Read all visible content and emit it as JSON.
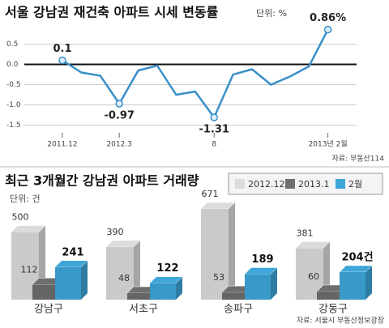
{
  "chart_data": [
    {
      "type": "line",
      "title": "서울 강남권 재건축 아파트 시세 변동률",
      "unit": "단위: %",
      "categories": [
        "2011.12",
        null,
        null,
        "2012.3",
        null,
        null,
        null,
        null,
        "8",
        null,
        null,
        null,
        null,
        null,
        "2013년 2월"
      ],
      "series": [
        {
          "name": "시세 변동률",
          "color": "#3a8fc8",
          "values": [
            0.1,
            -0.2,
            -0.28,
            -0.97,
            -0.15,
            -0.03,
            -0.75,
            -0.67,
            -1.31,
            -0.25,
            -0.12,
            -0.5,
            -0.3,
            -0.05,
            0.86
          ],
          "value_labels": [
            "0.1",
            null,
            null,
            "-0.97",
            null,
            null,
            null,
            null,
            "-1.31",
            null,
            null,
            null,
            null,
            null,
            "0.86%"
          ]
        }
      ],
      "ylim": [
        -1.65,
        0.95
      ],
      "yticks": [
        0.5,
        {
          "value": 0,
          "label": "0.0"
        },
        -0.5,
        {
          "value": -1,
          "label": "-1.0"
        },
        -1.5
      ],
      "grid": true,
      "source": "자료: 부동산114"
    },
    {
      "type": "bar3d",
      "title": "최근 3개월간 강남권 아파트 거래량",
      "unit": "단위: 건",
      "categories": [
        "강남구",
        "서초구",
        "송파구",
        "강동구"
      ],
      "series": [
        {
          "name": "2012.12",
          "color": "#dcdcdc",
          "values": [
            500,
            390,
            671,
            381
          ]
        },
        {
          "name": "2013.1",
          "color": "#6e6e6e",
          "values": [
            112,
            48,
            53,
            60
          ]
        },
        {
          "name": "2월",
          "color": "#3ea6d9",
          "values": [
            241,
            122,
            189,
            204
          ],
          "value_labels": [
            "241",
            "122",
            "189",
            "204건"
          ]
        }
      ],
      "legend": "top-right",
      "source": "자료: 서울시 부동산정보광장"
    }
  ]
}
